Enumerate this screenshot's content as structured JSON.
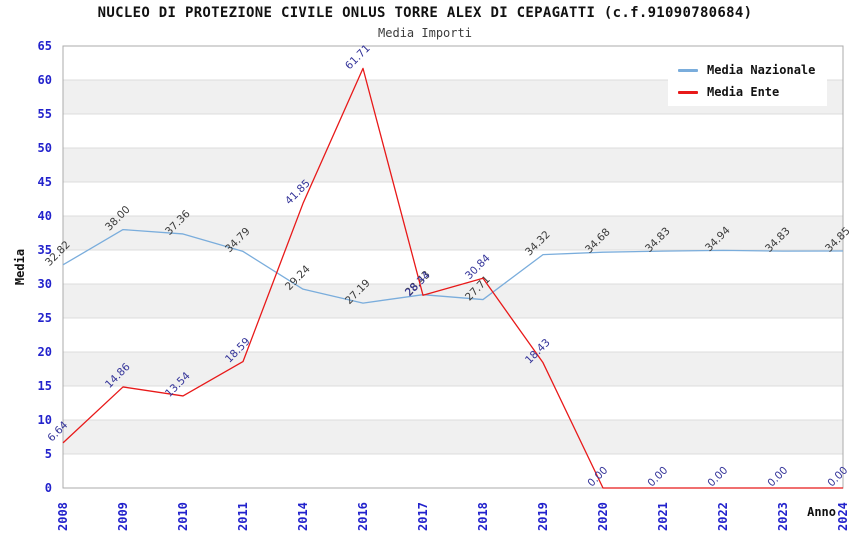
{
  "chart_data": {
    "type": "line",
    "title": "NUCLEO DI PROTEZIONE CIVILE ONLUS TORRE ALEX DI CEPAGATTI (c.f.91090780684)",
    "subtitle": "Media Importi",
    "xlabel": "Anno",
    "ylabel": "Media",
    "categories": [
      "2008",
      "2009",
      "2010",
      "2011",
      "2014",
      "2016",
      "2017",
      "2018",
      "2019",
      "2020",
      "2021",
      "2022",
      "2023",
      "2024"
    ],
    "ylim": [
      0,
      65
    ],
    "yticks": [
      0,
      5,
      10,
      15,
      20,
      25,
      30,
      35,
      40,
      45,
      50,
      55,
      60,
      65
    ],
    "grid": true,
    "band_step": 5,
    "legend_position": "top-right",
    "value_label_decimals": 2,
    "series": [
      {
        "name": "Media Nazionale",
        "color": "#7aaddc",
        "label_color": "#3a3a3a",
        "values": [
          32.82,
          38.0,
          37.36,
          34.79,
          29.24,
          27.19,
          28.43,
          27.71,
          34.32,
          34.68,
          34.83,
          34.94,
          34.83,
          34.85
        ]
      },
      {
        "name": "Media Ente",
        "color": "#e81919",
        "label_color": "#333399",
        "values": [
          6.64,
          14.86,
          13.54,
          18.59,
          41.85,
          61.71,
          28.34,
          30.84,
          18.43,
          0.0,
          0.0,
          0.0,
          0.0,
          0.0
        ]
      }
    ]
  },
  "colors": {
    "tick_text": "#2222cc",
    "axis_title_text": "#111111",
    "plot_band": "#f0f0f0",
    "grid_line": "#dcdcdc",
    "plot_border": "#ababab",
    "legend_bg": "#ffffff"
  }
}
